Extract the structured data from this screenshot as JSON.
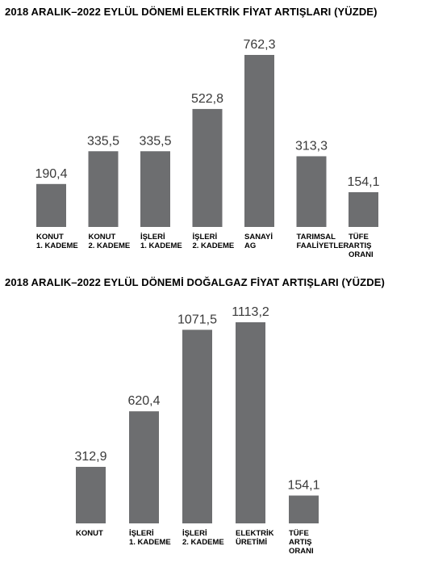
{
  "chart_data": [
    {
      "type": "bar",
      "title": "2018 ARALIK–2022 EYLÜL DÖNEMİ ELEKTRİK FİYAT ARTIŞLARI (YÜZDE)",
      "categories": [
        [
          "KONUT",
          "1. KADEME"
        ],
        [
          "KONUT",
          "2. KADEME"
        ],
        [
          "İŞLERİ",
          "1. KADEME"
        ],
        [
          "İŞLERİ",
          "2. KADEME"
        ],
        [
          "SANAYİ",
          "AG"
        ],
        [
          "TARIMSAL",
          "FAALİYETLER"
        ],
        [
          "TÜFE",
          "ARTIŞ",
          "ORANI"
        ]
      ],
      "values": [
        190.4,
        335.5,
        335.5,
        522.8,
        762.3,
        313.3,
        154.1
      ],
      "value_labels": [
        "190,4",
        "335,5",
        "335,5",
        "522,8",
        "762,3",
        "313,3",
        "154,1"
      ],
      "xlabel": "",
      "ylabel": "",
      "bar_color": "#6d6e70",
      "grid": false
    },
    {
      "type": "bar",
      "title": "2018 ARALIK–2022 EYLÜL DÖNEMİ DOĞALGAZ FİYAT ARTIŞLARI (YÜZDE)",
      "categories": [
        [
          "KONUT"
        ],
        [
          "İŞLERİ",
          "1. KADEME"
        ],
        [
          "İŞLERİ",
          "2. KADEME"
        ],
        [
          "ELEKTRİK",
          "ÜRETİMİ"
        ],
        [
          "TÜFE",
          "ARTIŞ",
          "ORANI"
        ]
      ],
      "values": [
        312.9,
        620.4,
        1071.5,
        1113.2,
        154.1
      ],
      "value_labels": [
        "312,9",
        "620,4",
        "1071,5",
        "1113,2",
        "154,1"
      ],
      "xlabel": "",
      "ylabel": "",
      "bar_color": "#6d6e70",
      "grid": false
    }
  ]
}
